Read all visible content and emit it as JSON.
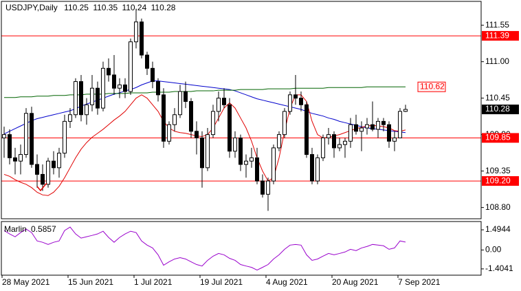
{
  "chart_data": [
    {
      "type": "candlestick",
      "title": "USDJPY,Daily",
      "categories": [
        "28 May 2021",
        null,
        null,
        null,
        null,
        null,
        null,
        null,
        null,
        null,
        null,
        null,
        "15 Jun 2021",
        null,
        null,
        null,
        null,
        null,
        null,
        null,
        null,
        null,
        null,
        null,
        "1 Jul 2021",
        null,
        null,
        null,
        null,
        null,
        null,
        null,
        null,
        null,
        null,
        null,
        "19 Jul 2021",
        null,
        null,
        null,
        null,
        null,
        null,
        null,
        null,
        null,
        null,
        null,
        "4 Aug 2021",
        null,
        null,
        null,
        null,
        null,
        null,
        null,
        null,
        null,
        null,
        null,
        "20 Aug 2021",
        null,
        null,
        null,
        null,
        null,
        null,
        null,
        null,
        null,
        null,
        null,
        "7 Sep 2021",
        null
      ],
      "open": [
        109.85,
        109.9,
        109.55,
        109.5,
        109.6,
        110.22,
        109.45,
        109.3,
        109.15,
        109.5,
        109.4,
        109.62,
        110.1,
        110.2,
        110.7,
        110.2,
        110.35,
        110.6,
        110.3,
        110.9,
        110.8,
        110.6,
        110.65,
        110.55,
        111.3,
        111.6,
        111.1,
        110.9,
        110.7,
        110.5,
        109.8,
        110.05,
        110.2,
        110.55,
        110.4,
        109.95,
        109.85,
        109.4,
        109.9,
        110.25,
        110.45,
        110.35,
        109.65,
        109.85,
        109.45,
        109.5,
        109.55,
        109.2,
        109.0,
        109.2,
        109.7,
        109.9,
        110.25,
        110.5,
        110.45,
        110.35,
        109.6,
        109.2,
        109.55,
        109.85,
        109.9,
        109.7,
        109.75,
        109.8,
        110.05,
        109.95,
        110.0,
        110.05,
        109.98,
        110.1,
        110.05,
        109.8,
        109.85,
        110.25
      ],
      "high": [
        110.02,
        109.98,
        109.7,
        109.75,
        110.3,
        110.32,
        109.6,
        109.45,
        109.55,
        109.65,
        109.7,
        110.2,
        110.3,
        110.75,
        110.8,
        110.45,
        110.8,
        110.7,
        111.0,
        111.05,
        111.1,
        110.75,
        110.75,
        111.35,
        111.8,
        111.65,
        111.15,
        111.0,
        110.75,
        110.6,
        110.1,
        110.3,
        110.65,
        110.7,
        110.45,
        110.1,
        109.95,
        110.0,
        110.35,
        110.55,
        110.6,
        110.45,
        109.95,
        109.9,
        109.6,
        109.7,
        109.7,
        109.3,
        109.25,
        109.75,
        109.95,
        110.3,
        110.55,
        110.8,
        110.55,
        110.4,
        109.7,
        109.6,
        109.9,
        110.0,
        109.95,
        109.85,
        109.85,
        110.15,
        110.2,
        110.1,
        110.15,
        110.4,
        110.15,
        110.15,
        110.1,
        109.95,
        110.3,
        110.35
      ],
      "low": [
        109.55,
        109.45,
        109.3,
        109.3,
        109.55,
        109.4,
        109.1,
        109.05,
        109.1,
        109.3,
        109.25,
        109.55,
        110.0,
        110.15,
        110.1,
        110.05,
        110.25,
        110.2,
        110.25,
        110.7,
        110.5,
        110.45,
        110.45,
        110.5,
        111.2,
        111.05,
        110.8,
        110.6,
        110.4,
        109.7,
        109.75,
        109.95,
        110.15,
        110.3,
        109.85,
        109.6,
        109.1,
        109.35,
        109.85,
        110.1,
        110.3,
        109.55,
        109.55,
        109.35,
        109.25,
        109.4,
        109.15,
        108.95,
        108.75,
        109.15,
        109.65,
        109.85,
        110.2,
        110.35,
        110.25,
        109.55,
        109.15,
        109.15,
        109.5,
        109.75,
        109.55,
        109.65,
        109.55,
        109.7,
        109.9,
        109.65,
        109.9,
        109.95,
        109.85,
        109.95,
        109.7,
        109.65,
        109.85,
        110.24
      ],
      "close": [
        109.9,
        109.55,
        109.5,
        109.6,
        110.22,
        109.45,
        109.3,
        109.15,
        109.5,
        109.4,
        109.62,
        110.1,
        110.2,
        110.7,
        110.2,
        110.35,
        110.6,
        110.3,
        110.9,
        110.8,
        110.6,
        110.65,
        110.55,
        111.3,
        111.6,
        111.1,
        110.9,
        110.7,
        110.5,
        109.8,
        110.05,
        110.2,
        110.55,
        110.4,
        109.95,
        109.85,
        109.4,
        109.9,
        110.25,
        110.45,
        110.35,
        109.65,
        109.85,
        109.45,
        109.5,
        109.55,
        109.2,
        109.0,
        109.2,
        109.7,
        109.9,
        110.25,
        110.5,
        110.45,
        110.35,
        109.6,
        109.2,
        109.55,
        109.85,
        109.9,
        109.7,
        109.75,
        109.8,
        110.05,
        109.95,
        110.0,
        110.05,
        109.98,
        110.1,
        110.05,
        109.8,
        109.85,
        110.25,
        110.28
      ],
      "up_color": "#ffffff",
      "down_color": "#000000",
      "edge_color": "#000000",
      "series": [
        {
          "color": "#0000cc",
          "values": [
            109.91,
            109.95,
            109.99,
            110.03,
            110.07,
            110.11,
            110.14,
            110.16,
            110.18,
            110.2,
            110.22,
            110.24,
            110.26,
            110.29,
            110.33,
            110.36,
            110.39,
            110.42,
            110.45,
            110.48,
            110.51,
            110.53,
            110.56,
            110.58,
            110.61,
            110.65,
            110.68,
            110.71,
            110.71,
            110.7,
            110.69,
            110.68,
            110.67,
            110.66,
            110.65,
            110.64,
            110.63,
            110.62,
            110.61,
            110.6,
            110.59,
            110.58,
            110.56,
            110.53,
            110.5,
            110.47,
            110.44,
            110.42,
            110.4,
            110.38,
            110.36,
            110.34,
            110.32,
            110.3,
            110.28,
            110.25,
            110.22,
            110.2,
            110.18,
            110.15,
            110.13,
            110.1,
            110.08,
            110.06,
            110.04,
            110.02,
            110.0,
            109.99,
            109.98,
            109.97,
            109.96,
            109.95,
            109.94,
            109.93
          ]
        },
        {
          "color": "#e00000",
          "values": [
            109.3,
            109.27,
            109.22,
            109.18,
            109.15,
            109.1,
            109.03,
            108.99,
            108.98,
            109.03,
            109.12,
            109.25,
            109.4,
            109.55,
            109.68,
            109.78,
            109.86,
            109.92,
            109.98,
            110.05,
            110.12,
            110.18,
            110.25,
            110.35,
            110.45,
            110.5,
            110.45,
            110.35,
            110.25,
            110.1,
            110.0,
            109.95,
            109.93,
            109.92,
            109.9,
            109.88,
            109.87,
            109.9,
            110.0,
            110.15,
            110.3,
            110.38,
            110.3,
            110.15,
            110.0,
            109.8,
            109.55,
            109.35,
            109.2,
            109.25,
            109.55,
            109.95,
            110.3,
            110.5,
            110.5,
            110.4,
            110.1,
            109.9,
            109.85,
            109.86,
            109.88,
            109.9,
            109.93,
            109.96,
            109.99,
            110.01,
            110.03,
            110.04,
            110.03,
            110.02,
            110.0,
            109.96,
            109.95,
            109.97
          ]
        },
        {
          "color": "#006400",
          "values": [
            110.46,
            110.46,
            110.46,
            110.47,
            110.47,
            110.47,
            110.48,
            110.48,
            110.48,
            110.49,
            110.49,
            110.49,
            110.5,
            110.5,
            110.5,
            110.51,
            110.51,
            110.51,
            110.51,
            110.52,
            110.52,
            110.52,
            110.52,
            110.53,
            110.53,
            110.53,
            110.53,
            110.54,
            110.54,
            110.54,
            110.54,
            110.55,
            110.55,
            110.55,
            110.55,
            110.56,
            110.56,
            110.56,
            110.56,
            110.57,
            110.57,
            110.57,
            110.57,
            110.58,
            110.58,
            110.58,
            110.58,
            110.58,
            110.59,
            110.59,
            110.59,
            110.59,
            110.59,
            110.6,
            110.6,
            110.6,
            110.6,
            110.6,
            110.6,
            110.61,
            110.61,
            110.61,
            110.61,
            110.61,
            110.61,
            110.61,
            110.62,
            110.62,
            110.62,
            110.62,
            110.62,
            110.62,
            110.62,
            110.62
          ]
        }
      ],
      "hlines": [
        {
          "value": 111.39,
          "color": "#ff0000"
        },
        {
          "value": 109.85,
          "color": "#ff0000"
        },
        {
          "value": 109.2,
          "label": "109.20",
          "color": "#ff0000"
        }
      ],
      "price_labels": [
        {
          "value": 110.62,
          "color": "#ff0000"
        }
      ],
      "ylim": [
        108.63,
        111.91
      ],
      "yticks": [
        111.55,
        {
          "value": 111,
          "label": "111.00"
        },
        110.45,
        {
          "value": 109.9,
          "label": "109.90"
        },
        109.35,
        {
          "value": 108.8,
          "label": "108.80"
        }
      ],
      "grid": false
    },
    {
      "type": "line",
      "name": "Marlin",
      "color": "#9900cc",
      "values": [
        1.44,
        1.19,
        0.98,
        1.29,
        1.55,
        1.29,
        0.67,
        0.57,
        0.41,
        0.57,
        0.67,
        1.44,
        1.7,
        1.19,
        0.88,
        0.98,
        1.08,
        1.19,
        1.39,
        0.93,
        0.57,
        0.93,
        1.19,
        1.39,
        1.29,
        0.67,
        0.36,
        0.15,
        -0.36,
        -1.13,
        -0.88,
        -0.67,
        -0.57,
        -0.67,
        -0.88,
        -1.08,
        -1.19,
        -0.77,
        -0.46,
        -0.26,
        -0.36,
        -0.62,
        -0.77,
        -1.08,
        -1.19,
        -1.29,
        -1.49,
        -1.29,
        -1.08,
        -0.67,
        -0.36,
        0.05,
        0.36,
        0.41,
        0.36,
        -0.36,
        -0.77,
        -0.67,
        -0.46,
        -0.26,
        -0.36,
        -0.26,
        -0.15,
        0.05,
        -0.05,
        0.15,
        0.26,
        0.41,
        0.36,
        0.31,
        0.05,
        0.15,
        0.67,
        0.5857
      ],
      "ylim": [
        -1.87,
        2.11
      ],
      "yticks": [
        1.4944,
        {
          "value": 0,
          "label": "0.00"
        },
        -1.4041
      ],
      "grid": false
    }
  ]
}
